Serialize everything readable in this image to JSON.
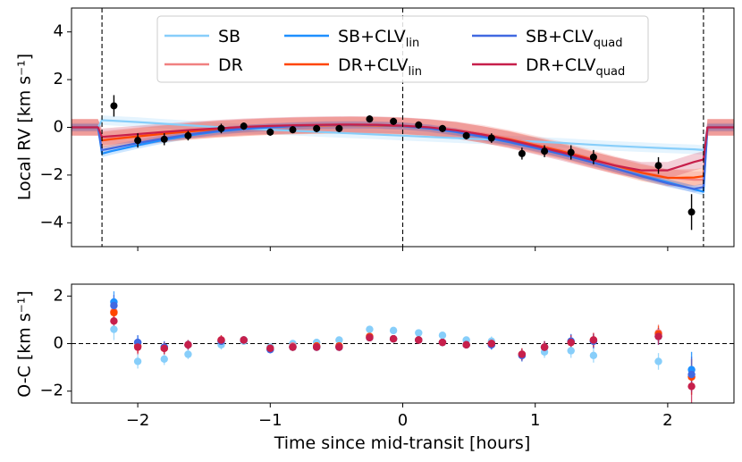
{
  "chart_data": {
    "type": "scatter",
    "x_axis": {
      "label": "Time since mid-transit [hours]",
      "range": [
        -2.5,
        2.5
      ],
      "ticks": [
        -2,
        -1,
        0,
        1,
        2
      ],
      "tick_labels": [
        "−2",
        "−1",
        "0",
        "1",
        "2"
      ]
    },
    "legend": {
      "placement": "top-center",
      "entries": [
        {
          "name": "SB",
          "sub": "",
          "color": "#87cefa"
        },
        {
          "name": "DR",
          "sub": "",
          "color": "#f08080"
        },
        {
          "name": "SB+CLV",
          "sub": "lin",
          "color": "#1e90ff"
        },
        {
          "name": "DR+CLV",
          "sub": "lin",
          "color": "#ff4500"
        },
        {
          "name": "SB+CLV",
          "sub": "quad",
          "color": "#4169e1"
        },
        {
          "name": "DR+CLV",
          "sub": "quad",
          "color": "#c71f4b"
        }
      ]
    },
    "transit_markers": [
      -2.27,
      0.0,
      2.27
    ],
    "top_panel": {
      "ylabel": "Local RV [km s⁻¹]",
      "ylim": [
        -5,
        5
      ],
      "yticks": [
        4,
        2,
        0,
        -2,
        -4
      ],
      "ytick_labels": [
        "4",
        "2",
        "0",
        "−2",
        "−4"
      ],
      "data": {
        "x": [
          -2.18,
          -2.0,
          -1.8,
          -1.62,
          -1.37,
          -1.2,
          -1.0,
          -0.83,
          -0.65,
          -0.48,
          -0.25,
          -0.07,
          0.12,
          0.3,
          0.48,
          0.67,
          0.9,
          1.07,
          1.27,
          1.44,
          1.93,
          2.18
        ],
        "y": [
          0.9,
          -0.55,
          -0.5,
          -0.35,
          -0.05,
          0.05,
          -0.2,
          -0.1,
          -0.05,
          -0.05,
          0.35,
          0.25,
          0.1,
          -0.05,
          -0.35,
          -0.45,
          -1.1,
          -1.0,
          -1.05,
          -1.25,
          -1.6,
          -3.55
        ],
        "err": [
          0.45,
          0.3,
          0.25,
          0.2,
          0.2,
          0.15,
          0.15,
          0.15,
          0.15,
          0.15,
          0.15,
          0.15,
          0.15,
          0.15,
          0.15,
          0.2,
          0.25,
          0.25,
          0.3,
          0.3,
          0.35,
          0.75
        ]
      },
      "models": {
        "x": [
          -2.5,
          -2.3,
          -2.27,
          -2.2,
          -2.0,
          -1.8,
          -1.6,
          -1.4,
          -1.2,
          -1.0,
          -0.8,
          -0.6,
          -0.4,
          -0.2,
          0.0,
          0.2,
          0.4,
          0.6,
          0.8,
          1.0,
          1.2,
          1.4,
          1.6,
          1.8,
          2.0,
          2.2,
          2.27,
          2.3,
          2.5
        ],
        "series": [
          {
            "name": "SB",
            "color": "#87cefa",
            "band": 0.2,
            "y": [
              0,
              0,
              0.3,
              0.28,
              0.22,
              0.15,
              0.08,
              0.01,
              -0.05,
              -0.1,
              -0.15,
              -0.2,
              -0.25,
              -0.3,
              -0.35,
              -0.4,
              -0.45,
              -0.5,
              -0.55,
              -0.6,
              -0.65,
              -0.72,
              -0.78,
              -0.83,
              -0.88,
              -0.92,
              -0.95,
              0,
              0
            ]
          },
          {
            "name": "DR",
            "color": "#f08080",
            "band": 0.35,
            "y": [
              0,
              0,
              -0.5,
              -0.45,
              -0.35,
              -0.25,
              -0.15,
              -0.07,
              -0.01,
              0.04,
              0.07,
              0.09,
              0.1,
              0.09,
              0.06,
              0.0,
              -0.1,
              -0.25,
              -0.45,
              -0.7,
              -0.95,
              -1.25,
              -1.55,
              -1.85,
              -2.1,
              -2.2,
              -2.2,
              0,
              0
            ]
          },
          {
            "name": "SB+CLV lin",
            "color": "#1e90ff",
            "band": 0.15,
            "y": [
              0,
              0,
              -1.1,
              -1.0,
              -0.75,
              -0.52,
              -0.33,
              -0.18,
              -0.07,
              0.0,
              0.05,
              0.08,
              0.09,
              0.08,
              0.04,
              -0.05,
              -0.2,
              -0.4,
              -0.62,
              -0.87,
              -1.13,
              -1.42,
              -1.72,
              -2.02,
              -2.3,
              -2.6,
              -2.7,
              0,
              0
            ]
          },
          {
            "name": "DR+CLV lin",
            "color": "#ff4500",
            "band": 0.35,
            "y": [
              0,
              0,
              -0.55,
              -0.5,
              -0.38,
              -0.27,
              -0.17,
              -0.08,
              -0.02,
              0.03,
              0.06,
              0.08,
              0.09,
              0.08,
              0.05,
              -0.02,
              -0.13,
              -0.3,
              -0.5,
              -0.75,
              -1.0,
              -1.3,
              -1.6,
              -1.9,
              -2.12,
              -2.1,
              -2.05,
              0,
              0
            ]
          },
          {
            "name": "SB+CLV quad",
            "color": "#4169e1",
            "band": 0.15,
            "y": [
              0,
              0,
              -0.95,
              -0.88,
              -0.66,
              -0.46,
              -0.29,
              -0.15,
              -0.05,
              0.02,
              0.07,
              0.1,
              0.11,
              0.1,
              0.06,
              -0.03,
              -0.18,
              -0.38,
              -0.6,
              -0.85,
              -1.12,
              -1.42,
              -1.72,
              -2.05,
              -2.35,
              -2.58,
              -2.5,
              0,
              0
            ]
          },
          {
            "name": "DR+CLV quad",
            "color": "#c71f4b",
            "band": 0.35,
            "y": [
              0,
              0,
              -0.4,
              -0.37,
              -0.28,
              -0.19,
              -0.11,
              -0.04,
              0.02,
              0.06,
              0.09,
              0.11,
              0.12,
              0.11,
              0.07,
              0.0,
              -0.12,
              -0.3,
              -0.52,
              -0.78,
              -1.05,
              -1.33,
              -1.6,
              -1.8,
              -1.8,
              -1.45,
              -1.35,
              0,
              0
            ]
          }
        ]
      }
    },
    "bottom_panel": {
      "ylabel": "O-C [km s⁻¹]",
      "ylim": [
        -2.5,
        2.5
      ],
      "yticks": [
        2,
        0,
        -2
      ],
      "ytick_labels": [
        "2",
        "0",
        "−2"
      ],
      "zero_line": true,
      "x": [
        -2.18,
        -2.0,
        -1.8,
        -1.62,
        -1.37,
        -1.2,
        -1.0,
        -0.83,
        -0.65,
        -0.48,
        -0.25,
        -0.07,
        0.12,
        0.3,
        0.48,
        0.67,
        0.9,
        1.07,
        1.27,
        1.44,
        1.93,
        2.18
      ],
      "err": [
        0.45,
        0.3,
        0.25,
        0.2,
        0.2,
        0.15,
        0.15,
        0.15,
        0.15,
        0.15,
        0.15,
        0.15,
        0.15,
        0.15,
        0.15,
        0.2,
        0.25,
        0.25,
        0.3,
        0.3,
        0.35,
        0.75
      ],
      "series": [
        {
          "name": "SB",
          "color": "#87cefa",
          "y": [
            0.6,
            -0.75,
            -0.65,
            -0.45,
            -0.05,
            0.1,
            -0.15,
            0.0,
            0.05,
            0.15,
            0.6,
            0.55,
            0.45,
            0.35,
            0.15,
            0.1,
            -0.45,
            -0.35,
            -0.3,
            -0.5,
            -0.75,
            -1.1
          ]
        },
        {
          "name": "DR",
          "color": "#f08080",
          "y": [
            1.35,
            -0.1,
            -0.2,
            -0.05,
            0.1,
            0.15,
            -0.2,
            -0.1,
            -0.1,
            -0.1,
            0.3,
            0.2,
            0.15,
            0.05,
            -0.05,
            0.0,
            -0.45,
            -0.15,
            0.05,
            0.1,
            0.45,
            -1.4
          ]
        },
        {
          "name": "SB+CLV lin",
          "color": "#1e90ff",
          "y": [
            1.75,
            0.05,
            -0.15,
            -0.05,
            0.1,
            0.15,
            -0.25,
            -0.15,
            -0.15,
            -0.15,
            0.25,
            0.2,
            0.15,
            0.05,
            -0.05,
            -0.05,
            -0.5,
            -0.15,
            0.1,
            0.1,
            0.3,
            -1.1
          ]
        },
        {
          "name": "DR+CLV lin",
          "color": "#ff4500",
          "y": [
            1.3,
            -0.1,
            -0.2,
            -0.05,
            0.15,
            0.15,
            -0.2,
            -0.15,
            -0.1,
            -0.1,
            0.3,
            0.2,
            0.15,
            0.05,
            -0.05,
            0.0,
            -0.45,
            -0.15,
            0.05,
            0.15,
            0.4,
            -1.4
          ]
        },
        {
          "name": "SB+CLV quad",
          "color": "#4169e1",
          "y": [
            1.6,
            0.05,
            -0.15,
            -0.05,
            0.1,
            0.15,
            -0.25,
            -0.15,
            -0.15,
            -0.15,
            0.25,
            0.2,
            0.15,
            0.05,
            -0.05,
            -0.05,
            -0.5,
            -0.15,
            0.1,
            0.1,
            0.3,
            -1.3
          ]
        },
        {
          "name": "DR+CLV quad",
          "color": "#c71f4b",
          "y": [
            0.95,
            -0.15,
            -0.2,
            -0.05,
            0.15,
            0.15,
            -0.2,
            -0.15,
            -0.15,
            -0.15,
            0.25,
            0.2,
            0.15,
            0.05,
            -0.05,
            0.0,
            -0.45,
            -0.15,
            0.05,
            0.15,
            0.3,
            -1.8
          ]
        }
      ]
    }
  }
}
